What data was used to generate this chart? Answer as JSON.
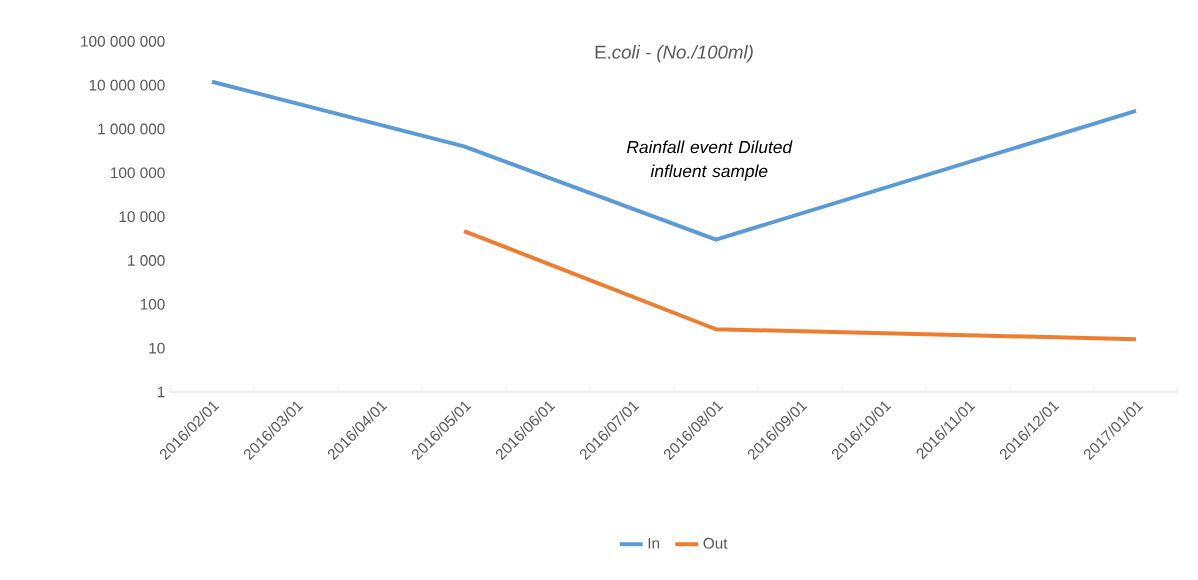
{
  "chart_data": {
    "type": "line",
    "title": "E.*coli - (No./100ml)*",
    "categories": [
      "2016/02/01",
      "2016/03/01",
      "2016/04/01",
      "2016/05/01",
      "2016/06/01",
      "2016/07/01",
      "2016/08/01",
      "2016/09/01",
      "2016/10/01",
      "2016/11/01",
      "2016/12/01",
      "2017/01/01"
    ],
    "series": [
      {
        "name": "In",
        "color": "#5b9bd5",
        "values": [
          12000000,
          null,
          null,
          400000,
          null,
          null,
          3000,
          null,
          null,
          null,
          null,
          2600000
        ]
      },
      {
        "name": "Out",
        "color": "#ed7d31",
        "values": [
          null,
          null,
          null,
          4700,
          null,
          null,
          27,
          null,
          null,
          null,
          null,
          16
        ]
      }
    ],
    "log": "y",
    "ylim": [
      1,
      100000000
    ],
    "yticks": [
      {
        "value": 1,
        "label": "1"
      },
      {
        "value": 10,
        "label": "10"
      },
      {
        "value": 100,
        "label": "100"
      },
      {
        "value": 1000,
        "label": "1 000"
      },
      {
        "value": 10000,
        "label": "10 000"
      },
      {
        "value": 100000,
        "label": "100 000"
      },
      {
        "value": 1000000,
        "label": "1 000 000"
      },
      {
        "value": 10000000,
        "label": "10 000 000"
      },
      {
        "value": 100000000,
        "label": "100 000 000"
      }
    ],
    "annotations": [
      "Rainfall event Diluted influent sample"
    ],
    "legend": "bottom",
    "marker": "none",
    "line_style": "solid",
    "grid": false
  }
}
